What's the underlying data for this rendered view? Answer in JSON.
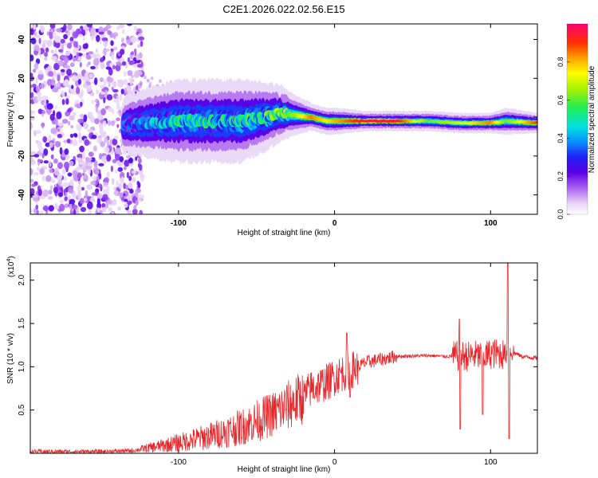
{
  "figure_title": "C2E1.2026.022.02.56.E15",
  "chart_data": [
    {
      "type": "heatmap",
      "title": "C2E1.2026.022.02.56.E15",
      "xlabel": "Height of straight line (km)",
      "ylabel": "Frequency (Hz)",
      "xlim": [
        -195,
        130
      ],
      "ylim": [
        -50,
        48
      ],
      "x_ticks": [
        -100,
        0,
        100
      ],
      "x_tick_labels": [
        "-100",
        "0",
        "100"
      ],
      "y_ticks": [
        -40,
        -20,
        0,
        20,
        40
      ],
      "y_tick_labels": [
        "-40",
        "-20",
        "0",
        "20",
        "40"
      ],
      "colorbar": {
        "label": "Normalized spectral amplitude",
        "range": [
          0.0,
          1.0
        ],
        "ticks": [
          0.0,
          0.2,
          0.4,
          0.6,
          0.8
        ],
        "tick_labels": [
          "0.0",
          "0.2",
          "0.4",
          "0.6",
          "0.8"
        ]
      },
      "noise_region": {
        "x_range": [
          -195,
          -123
        ],
        "freq_range": [
          -50,
          48
        ],
        "amplitude": [
          0.05,
          0.25
        ]
      },
      "signal_ridge": {
        "x": [
          -135,
          -120,
          -100,
          -80,
          -60,
          -45,
          -35,
          -25,
          -15,
          -5,
          0,
          20,
          40,
          60,
          80,
          100,
          110,
          130
        ],
        "center_freq": [
          -4,
          -3,
          -2,
          -2,
          -2,
          0,
          2,
          1,
          0,
          -2,
          -2,
          -2,
          -2,
          -2,
          -3,
          -3,
          -2,
          -3
        ],
        "half_width": [
          4,
          5,
          6,
          6,
          6,
          5,
          4,
          3,
          2,
          2,
          2,
          1.5,
          1.5,
          1.5,
          1.5,
          1.5,
          2,
          1.5
        ],
        "amplitude": [
          0.3,
          0.38,
          0.45,
          0.45,
          0.48,
          0.5,
          0.55,
          0.65,
          0.85,
          0.75,
          0.8,
          0.95,
          0.95,
          0.6,
          0.7,
          0.85,
          0.6,
          0.9
        ]
      }
    },
    {
      "type": "line",
      "xlabel": "Height of straight line (km)",
      "ylabel": "SNR (10 * v/v)",
      "y_multiplier_label": "(x10",
      "y_multiplier_exponent": "4",
      "y_multiplier_close": ")",
      "xlim": [
        -195,
        130
      ],
      "ylim": [
        0.0,
        2.2
      ],
      "x_ticks": [
        -100,
        0,
        100
      ],
      "x_tick_labels": [
        "-100",
        "0",
        "100"
      ],
      "y_ticks": [
        0.5,
        1.0,
        1.5,
        2.0
      ],
      "y_tick_labels": [
        "0.5",
        "1.0",
        "1.5",
        "2.0"
      ],
      "series": [
        {
          "name": "SNR",
          "color": "#e8262a",
          "x": [
            -195,
            -150,
            -130,
            -120,
            -100,
            -80,
            -60,
            -40,
            -30,
            -20,
            -15,
            -10,
            -5,
            0,
            5,
            10,
            20,
            40,
            60,
            70,
            78,
            80,
            85,
            90,
            95,
            100,
            105,
            108,
            110,
            113,
            120,
            130
          ],
          "y": [
            0.02,
            0.02,
            0.03,
            0.06,
            0.12,
            0.2,
            0.3,
            0.45,
            0.55,
            0.65,
            0.75,
            0.78,
            0.82,
            0.88,
            0.93,
            0.95,
            1.05,
            1.12,
            1.13,
            1.12,
            1.12,
            1.13,
            1.12,
            1.13,
            1.12,
            1.15,
            1.15,
            1.15,
            1.15,
            1.18,
            1.12,
            1.1
          ]
        }
      ],
      "annotated_spikes": [
        {
          "x": 8,
          "y": 1.39
        },
        {
          "x": 10,
          "y": 0.65
        },
        {
          "x": 80,
          "y": 1.55
        },
        {
          "x": 80.5,
          "y": 0.28
        },
        {
          "x": 95,
          "y": 0.45
        },
        {
          "x": 111,
          "y": 2.2
        },
        {
          "x": 112,
          "y": 0.17
        }
      ]
    }
  ]
}
